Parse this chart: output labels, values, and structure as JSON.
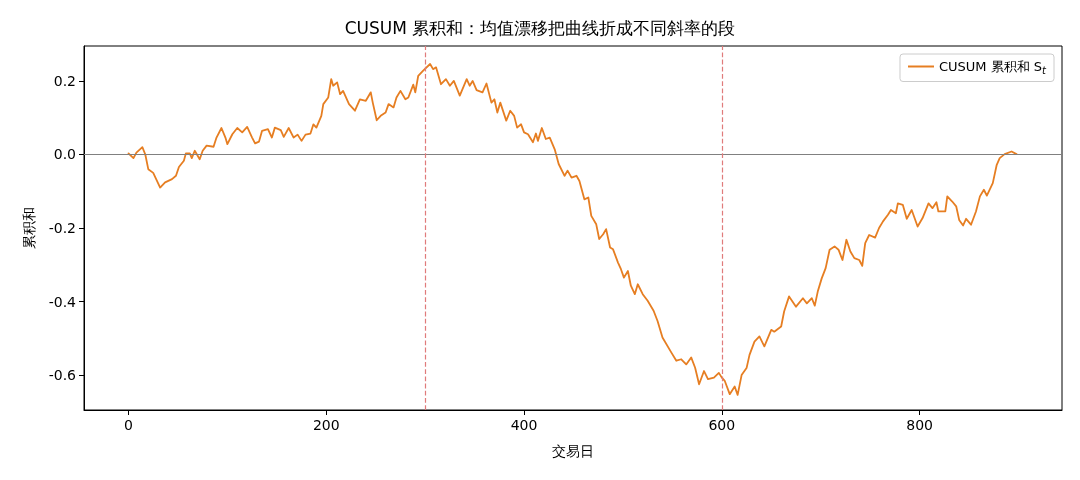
{
  "chart_data": {
    "type": "line",
    "title": "CUSUM 累积和：均值漂移把曲线折成不同斜率的段",
    "xlabel": "交易日",
    "ylabel": "累积和",
    "xlim": [
      -45,
      944
    ],
    "xticks": [
      0,
      200,
      400,
      600,
      800
    ],
    "ylim": [
      -0.695,
      0.295
    ],
    "yticks": [
      {
        "value": -0.6,
        "label": "-0.6"
      },
      {
        "value": -0.4,
        "label": "-0.4"
      },
      {
        "value": -0.2,
        "label": "-0.2"
      },
      {
        "value": 0,
        "label": "0.0"
      },
      {
        "value": 0.2,
        "label": "0.2"
      }
    ],
    "grid": false,
    "legend": "top right",
    "marker": "none",
    "line_style": "solid",
    "ref_lines": [
      {
        "axis": "y",
        "value": 0,
        "color": "#808080",
        "line_style": "solid"
      },
      {
        "axis": "x",
        "value": 300,
        "color": "#e07b7b",
        "line_style": "dashed"
      },
      {
        "axis": "x",
        "value": 600,
        "color": "#e07b7b",
        "line_style": "dashed"
      }
    ],
    "series": [
      {
        "name": "CUSUM 累积和 S$_{t}$",
        "color": "#e67e22",
        "x": [
          0,
          5,
          8,
          14,
          17,
          20,
          25,
          32,
          37,
          44,
          48,
          51,
          56,
          58,
          62,
          64,
          67,
          72,
          75,
          79,
          86,
          89,
          94,
          98,
          100,
          105,
          110,
          115,
          120,
          125,
          128,
          132,
          135,
          141,
          145,
          148,
          154,
          157,
          162,
          167,
          171,
          175,
          179,
          184,
          187,
          190,
          195,
          197,
          202,
          205,
          207,
          211,
          214,
          217,
          223,
          229,
          234,
          240,
          245,
          247,
          251,
          255,
          260,
          263,
          268,
          271,
          275,
          280,
          283,
          288,
          290,
          293,
          298,
          305,
          308,
          311,
          316,
          321,
          325,
          329,
          335,
          342,
          345,
          348,
          352,
          358,
          362,
          367,
          370,
          373,
          376,
          382,
          386,
          390,
          393,
          397,
          400,
          404,
          409,
          412,
          414,
          418,
          422,
          426,
          431,
          435,
          441,
          444,
          448,
          453,
          456,
          461,
          465,
          468,
          473,
          476,
          480,
          483,
          487,
          490,
          495,
          498,
          501,
          505,
          508,
          512,
          515,
          520,
          525,
          531,
          535,
          540,
          549,
          554,
          559,
          564,
          569,
          573,
          577,
          582,
          586,
          592,
          597,
          600,
          603,
          608,
          613,
          616,
          620,
          625,
          628,
          633,
          638,
          643,
          650,
          653,
          660,
          663,
          668,
          675,
          682,
          686,
          691,
          694,
          697,
          701,
          705,
          709,
          714,
          718,
          722,
          726,
          730,
          734,
          739,
          742,
          745,
          749,
          755,
          759,
          763,
          768,
          771,
          776,
          778,
          783,
          787,
          792,
          798,
          803,
          809,
          813,
          817,
          819,
          826,
          828,
          833,
          837,
          840,
          844,
          847,
          852,
          857,
          861,
          865,
          868,
          874,
          878,
          881,
          886,
          893,
          898
        ],
        "values": [
          0.003,
          -0.01,
          0.005,
          0.02,
          0.0,
          -0.04,
          -0.05,
          -0.09,
          -0.076,
          -0.067,
          -0.058,
          -0.034,
          -0.017,
          0.003,
          0.003,
          -0.01,
          0.01,
          -0.013,
          0.01,
          0.024,
          0.021,
          0.046,
          0.072,
          0.046,
          0.028,
          0.055,
          0.072,
          0.06,
          0.075,
          0.046,
          0.03,
          0.035,
          0.064,
          0.069,
          0.046,
          0.073,
          0.066,
          0.048,
          0.072,
          0.046,
          0.054,
          0.037,
          0.054,
          0.057,
          0.082,
          0.073,
          0.105,
          0.137,
          0.155,
          0.205,
          0.187,
          0.196,
          0.164,
          0.173,
          0.137,
          0.119,
          0.15,
          0.146,
          0.169,
          0.141,
          0.093,
          0.105,
          0.114,
          0.137,
          0.128,
          0.155,
          0.173,
          0.15,
          0.155,
          0.19,
          0.169,
          0.214,
          0.228,
          0.246,
          0.232,
          0.237,
          0.191,
          0.205,
          0.187,
          0.2,
          0.16,
          0.205,
          0.187,
          0.2,
          0.175,
          0.169,
          0.193,
          0.141,
          0.15,
          0.114,
          0.141,
          0.092,
          0.119,
          0.105,
          0.073,
          0.082,
          0.06,
          0.055,
          0.033,
          0.057,
          0.037,
          0.072,
          0.042,
          0.046,
          0.014,
          -0.026,
          -0.058,
          -0.044,
          -0.063,
          -0.058,
          -0.072,
          -0.122,
          -0.117,
          -0.167,
          -0.19,
          -0.23,
          -0.217,
          -0.203,
          -0.253,
          -0.258,
          -0.294,
          -0.312,
          -0.335,
          -0.317,
          -0.357,
          -0.38,
          -0.353,
          -0.38,
          -0.398,
          -0.425,
          -0.453,
          -0.498,
          -0.539,
          -0.561,
          -0.557,
          -0.571,
          -0.552,
          -0.58,
          -0.625,
          -0.589,
          -0.611,
          -0.607,
          -0.594,
          -0.607,
          -0.616,
          -0.652,
          -0.631,
          -0.654,
          -0.6,
          -0.581,
          -0.545,
          -0.509,
          -0.495,
          -0.522,
          -0.477,
          -0.482,
          -0.468,
          -0.427,
          -0.386,
          -0.414,
          -0.391,
          -0.405,
          -0.391,
          -0.411,
          -0.373,
          -0.337,
          -0.309,
          -0.259,
          -0.25,
          -0.259,
          -0.287,
          -0.232,
          -0.264,
          -0.282,
          -0.287,
          -0.303,
          -0.241,
          -0.219,
          -0.226,
          -0.2,
          -0.182,
          -0.164,
          -0.151,
          -0.16,
          -0.133,
          -0.137,
          -0.175,
          -0.151,
          -0.196,
          -0.173,
          -0.133,
          -0.146,
          -0.13,
          -0.155,
          -0.155,
          -0.114,
          -0.128,
          -0.141,
          -0.178,
          -0.193,
          -0.175,
          -0.191,
          -0.155,
          -0.114,
          -0.096,
          -0.112,
          -0.078,
          -0.028,
          -0.01,
          0.001,
          0.008,
          0.001
        ]
      }
    ]
  }
}
